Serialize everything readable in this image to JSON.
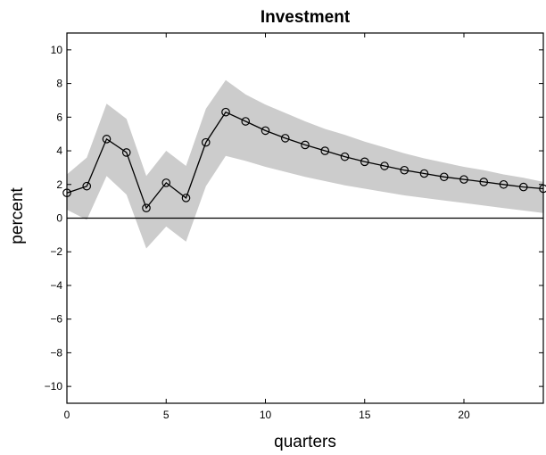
{
  "chart_data": {
    "type": "line",
    "title": "Investment",
    "xlabel": "quarters",
    "ylabel": "percent",
    "xlim": [
      0,
      24
    ],
    "ylim": [
      -11,
      11
    ],
    "x_ticks": [
      0,
      5,
      10,
      15,
      20
    ],
    "y_ticks": [
      -10,
      -8,
      -6,
      -4,
      -2,
      0,
      2,
      4,
      6,
      8,
      10
    ],
    "grid": false,
    "zero_line": true,
    "x": [
      0,
      1,
      2,
      3,
      4,
      5,
      6,
      7,
      8,
      9,
      10,
      11,
      12,
      13,
      14,
      15,
      16,
      17,
      18,
      19,
      20,
      21,
      22,
      23,
      24
    ],
    "series": [
      {
        "values": [
          1.5,
          1.9,
          4.7,
          3.9,
          0.6,
          2.1,
          1.2,
          4.5,
          6.3,
          5.75,
          5.2,
          4.75,
          4.35,
          4.0,
          3.65,
          3.35,
          3.1,
          2.85,
          2.65,
          2.45,
          2.3,
          2.15,
          2.0,
          1.85,
          1.75
        ],
        "marker": "circle",
        "color": "#000000"
      }
    ],
    "band": {
      "lower": [
        0.5,
        -0.1,
        2.5,
        1.4,
        -1.8,
        -0.5,
        -1.4,
        1.9,
        3.7,
        3.4,
        3.05,
        2.75,
        2.45,
        2.2,
        1.95,
        1.75,
        1.55,
        1.35,
        1.2,
        1.05,
        0.9,
        0.75,
        0.6,
        0.45,
        0.3
      ],
      "upper": [
        2.6,
        3.6,
        6.8,
        5.9,
        2.5,
        4.0,
        3.1,
        6.5,
        8.2,
        7.35,
        6.75,
        6.25,
        5.75,
        5.3,
        4.95,
        4.55,
        4.2,
        3.85,
        3.55,
        3.3,
        3.05,
        2.85,
        2.6,
        2.4,
        2.15
      ],
      "color": "#cccccc"
    }
  }
}
